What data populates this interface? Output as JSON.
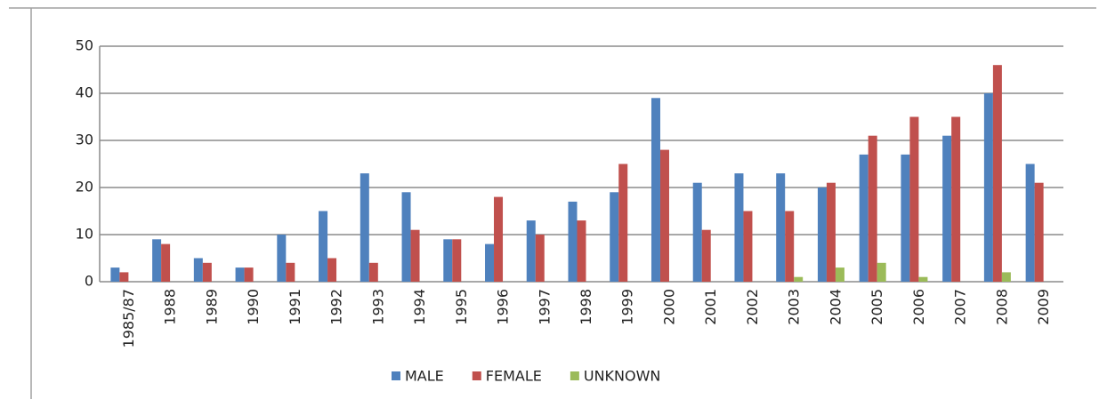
{
  "chart_data": {
    "type": "bar",
    "categories": [
      "1985/87",
      "1988",
      "1989",
      "1990",
      "1991",
      "1992",
      "1993",
      "1994",
      "1995",
      "1996",
      "1997",
      "1998",
      "1999",
      "2000",
      "2001",
      "2002",
      "2003",
      "2004",
      "2005",
      "2006",
      "2007",
      "2008",
      "2009"
    ],
    "series": [
      {
        "name": "MALE",
        "color": "#4f81bd",
        "values": [
          3,
          9,
          5,
          3,
          10,
          15,
          23,
          19,
          9,
          8,
          13,
          17,
          19,
          39,
          21,
          23,
          23,
          20,
          27,
          27,
          31,
          40,
          25
        ]
      },
      {
        "name": "FEMALE",
        "color": "#c0504d",
        "values": [
          2,
          8,
          4,
          3,
          4,
          5,
          4,
          11,
          9,
          18,
          10,
          13,
          25,
          28,
          11,
          15,
          15,
          21,
          31,
          35,
          35,
          46,
          21
        ]
      },
      {
        "name": "UNKNOWN",
        "color": "#9bbb59",
        "values": [
          0,
          0,
          0,
          0,
          0,
          0,
          0,
          0,
          0,
          0,
          0,
          0,
          0,
          0,
          0,
          0,
          1,
          3,
          4,
          1,
          0,
          2,
          0
        ]
      }
    ],
    "ylim": [
      0,
      50
    ],
    "yticks": [
      0,
      10,
      20,
      30,
      40,
      50
    ],
    "grid": true,
    "legend": "bottom"
  }
}
